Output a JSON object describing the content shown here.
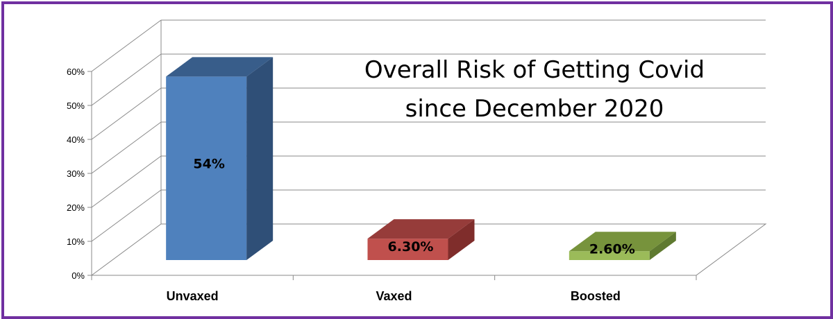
{
  "chart_data": {
    "type": "bar",
    "title_lines": [
      "Overall Risk of Getting Covid",
      "since December 2020"
    ],
    "categories": [
      "Unvaxed",
      "Vaxed",
      "Boosted"
    ],
    "values": [
      54,
      6.3,
      2.6
    ],
    "data_labels": [
      "54%",
      "6.30%",
      "2.60%"
    ],
    "colors": [
      {
        "front": "#4f81bd",
        "side": "#2f4f77",
        "top": "#385d8a"
      },
      {
        "front": "#c0504d",
        "side": "#7f2d2b",
        "top": "#963c3a"
      },
      {
        "front": "#9bbb59",
        "side": "#5f7a30",
        "top": "#77933c"
      }
    ],
    "yticks": [
      "0%",
      "10%",
      "20%",
      "30%",
      "40%",
      "50%",
      "60%"
    ],
    "ylim": [
      0,
      60
    ],
    "grid": true,
    "border_color": "#7030a0"
  }
}
